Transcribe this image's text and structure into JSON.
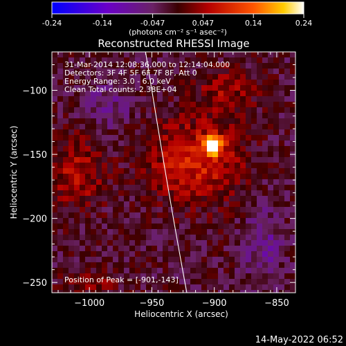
{
  "colorbar": {
    "ticks": [
      "-0.24",
      "-0.14",
      "-0.047",
      "0.047",
      "0.14",
      "0.24"
    ],
    "unit_label": "(photons cm⁻² s⁻¹ asec⁻²)"
  },
  "chart_data": {
    "type": "heatmap",
    "title": "Reconstructed RHESSI Image",
    "xlabel": "Heliocentric X (arcsec)",
    "ylabel": "Heliocentric Y (arcsec)",
    "xlim": [
      -1030,
      -835
    ],
    "ylim": [
      -258,
      -70
    ],
    "x_ticks": [
      "−1000",
      "−950",
      "−900",
      "−850"
    ],
    "x_tick_values": [
      -1000,
      -950,
      -900,
      -850
    ],
    "y_ticks": [
      "−100",
      "−150",
      "−200",
      "−250"
    ],
    "y_tick_values": [
      -100,
      -150,
      -200,
      -250
    ],
    "color_range": [
      -0.24,
      0.24
    ],
    "peak": {
      "x": -901,
      "y": -143,
      "value": 0.24
    },
    "limb_curve": [
      [
        -955,
        -70
      ],
      [
        -945,
        -130
      ],
      [
        -935,
        -190
      ],
      [
        -922,
        -258
      ]
    ],
    "annotations": [
      "31-Mar-2014 12:08:36.000 to 12:14:04.000",
      "Detectors: 3F 4F 5F 6F 7F 8F, Att 0",
      "Energy Range: 3.0 - 6.0 keV",
      "Clean     Total counts: 2.38E+04"
    ],
    "peak_label": "Position of Peak = [-901,-143]"
  },
  "footer": {
    "date": "14-May-2022 06:52"
  }
}
